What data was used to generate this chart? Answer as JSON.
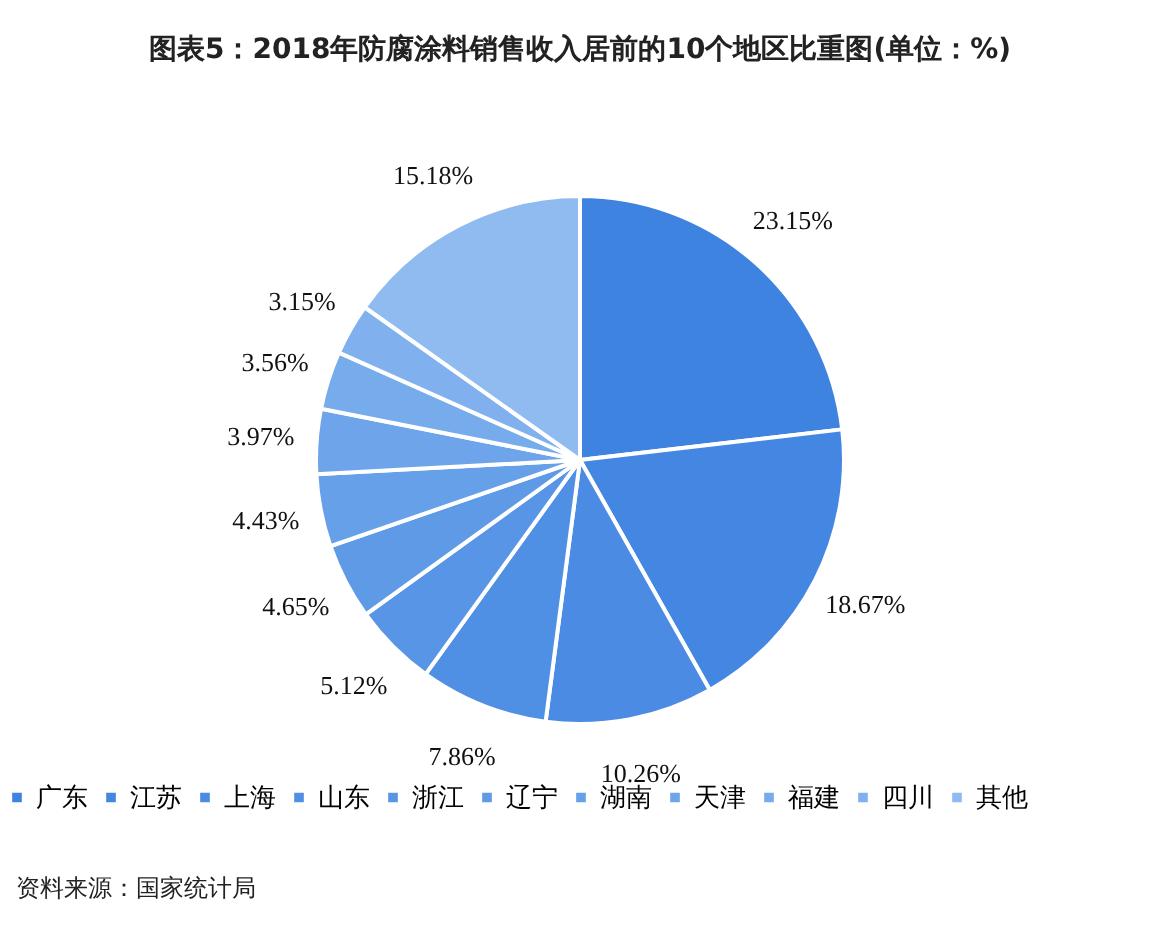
{
  "chart_data": {
    "type": "pie",
    "title": "图表5：2018年防腐涂料销售收入居前的10个地区比重图(单位：%)",
    "categories": [
      "广东",
      "江苏",
      "上海",
      "山东",
      "浙江",
      "辽宁",
      "湖南",
      "天津",
      "福建",
      "四川",
      "其他"
    ],
    "values": [
      23.15,
      18.67,
      10.26,
      7.86,
      5.12,
      4.65,
      4.43,
      3.97,
      3.56,
      3.15,
      15.18
    ],
    "value_labels": [
      "23.15%",
      "18.67%",
      "10.26%",
      "7.86%",
      "5.12%",
      "4.65%",
      "4.43%",
      "3.97%",
      "3.56%",
      "3.15%",
      "15.18%"
    ],
    "colors": [
      "#3f83e0",
      "#4487e2",
      "#4b8be3",
      "#5090e4",
      "#5895e6",
      "#5f9ae7",
      "#66a0e9",
      "#6ea5ea",
      "#76abec",
      "#80b1ee",
      "#8fbbf1"
    ],
    "legend": "bottom",
    "annotations": [
      "资料来源：国家统计局"
    ]
  }
}
